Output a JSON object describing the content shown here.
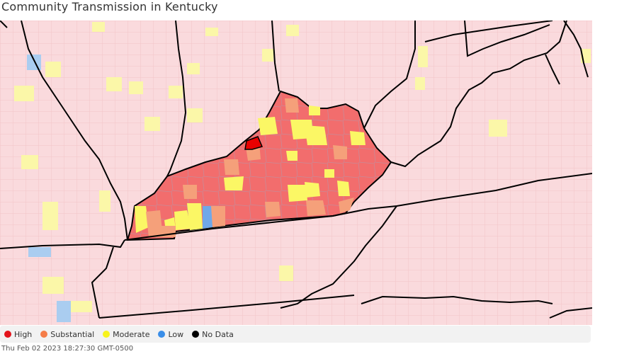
{
  "title": "Community Transmission in Kentucky",
  "timestamp": "Thu Feb 02 2023 18:27:30 GMT-0500",
  "legend": [
    {
      "label": "High",
      "color": "#e3141c",
      "icon": "high-dot-icon"
    },
    {
      "label": "Substantial",
      "color": "#f57d48",
      "icon": "substantial-dot-icon"
    },
    {
      "label": "Moderate",
      "color": "#f7f31c",
      "icon": "moderate-dot-icon"
    },
    {
      "label": "Low",
      "color": "#3a8ee8",
      "icon": "low-dot-icon"
    },
    {
      "label": "No Data",
      "color": "#000000",
      "icon": "no-data-dot-icon"
    }
  ],
  "colors": {
    "background_high": "#fadadd",
    "kentucky_high": "#f26d6d",
    "substantial_light": "#f5a989",
    "moderate_light": "#fbf7a8",
    "highlight_red": "#e80000",
    "low_blue": "#6fa8e8",
    "border": "#000000"
  }
}
